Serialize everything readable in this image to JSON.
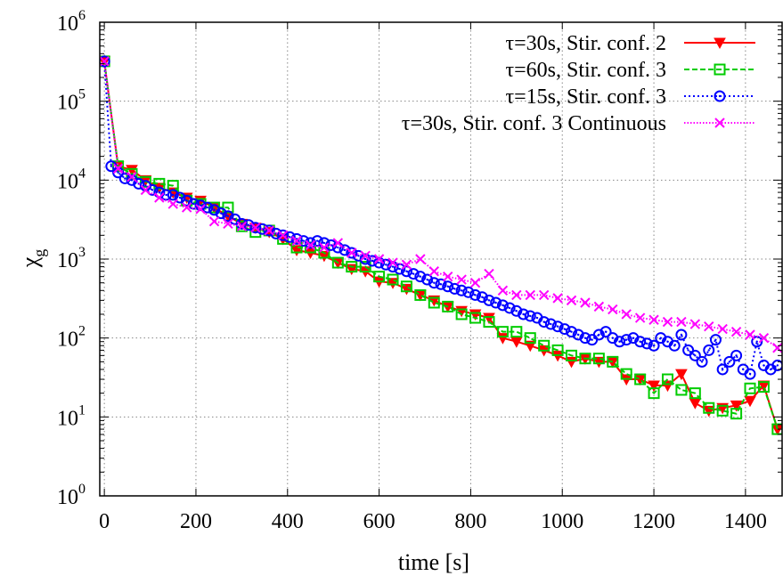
{
  "chart_data": {
    "type": "line",
    "title": "",
    "xlabel": "time [s]",
    "ylabel_main": "χ",
    "ylabel_sub": "g",
    "xlim": [
      -10,
      1480
    ],
    "ylim_exp": [
      0,
      6
    ],
    "yscale": "log",
    "x_ticks": [
      0,
      200,
      400,
      600,
      800,
      1000,
      1200,
      1400
    ],
    "y_ticks": [
      {
        "base": "10",
        "exp": "0"
      },
      {
        "base": "10",
        "exp": "1"
      },
      {
        "base": "10",
        "exp": "2"
      },
      {
        "base": "10",
        "exp": "3"
      },
      {
        "base": "10",
        "exp": "4"
      },
      {
        "base": "10",
        "exp": "5"
      },
      {
        "base": "10",
        "exp": "6"
      }
    ],
    "grid": true,
    "legend_position": "top-right",
    "series": [
      {
        "name": "τ=30s, Stir. conf. 2",
        "color": "#ff0000",
        "marker": "triangle-down",
        "x": [
          0,
          30,
          60,
          90,
          120,
          150,
          180,
          210,
          240,
          270,
          300,
          330,
          360,
          390,
          420,
          450,
          480,
          510,
          540,
          570,
          600,
          630,
          660,
          690,
          720,
          750,
          780,
          810,
          840,
          870,
          900,
          930,
          960,
          990,
          1020,
          1050,
          1080,
          1110,
          1140,
          1170,
          1200,
          1230,
          1260,
          1290,
          1320,
          1350,
          1380,
          1410,
          1440,
          1470
        ],
        "y": [
          320000,
          15000,
          13500,
          10000,
          8000,
          7000,
          6000,
          5500,
          4500,
          3500,
          2800,
          2500,
          2200,
          1800,
          1300,
          1200,
          1100,
          900,
          750,
          700,
          520,
          500,
          420,
          350,
          300,
          250,
          220,
          200,
          180,
          100,
          90,
          80,
          70,
          60,
          50,
          55,
          50,
          50,
          30,
          30,
          25,
          25,
          35,
          15,
          12,
          13,
          14,
          16,
          25,
          7
        ]
      },
      {
        "name": "τ=60s, Stir. conf. 3",
        "color": "#00cc00",
        "marker": "square-open",
        "x": [
          0,
          30,
          60,
          90,
          120,
          150,
          180,
          210,
          240,
          270,
          300,
          330,
          360,
          390,
          420,
          450,
          480,
          510,
          540,
          570,
          600,
          630,
          660,
          690,
          720,
          750,
          780,
          810,
          840,
          870,
          900,
          930,
          960,
          990,
          1020,
          1050,
          1080,
          1110,
          1140,
          1170,
          1200,
          1230,
          1260,
          1290,
          1320,
          1350,
          1380,
          1410,
          1440,
          1470
        ],
        "y": [
          320000,
          15000,
          12000,
          9500,
          9000,
          8500,
          5500,
          5000,
          4500,
          4500,
          2600,
          2200,
          2300,
          1800,
          1400,
          1400,
          1200,
          900,
          800,
          800,
          600,
          550,
          450,
          350,
          280,
          250,
          200,
          180,
          160,
          120,
          120,
          100,
          80,
          70,
          60,
          55,
          55,
          50,
          35,
          30,
          20,
          30,
          22,
          20,
          13,
          12,
          11,
          23,
          24,
          7
        ]
      },
      {
        "name": "τ=15s, Stir. conf. 3",
        "color": "#0000ff",
        "marker": "circle-dot",
        "x": [
          0,
          15,
          30,
          45,
          60,
          75,
          90,
          105,
          120,
          135,
          150,
          165,
          180,
          195,
          210,
          225,
          240,
          255,
          270,
          285,
          300,
          315,
          330,
          345,
          360,
          375,
          390,
          405,
          420,
          435,
          450,
          465,
          480,
          495,
          510,
          525,
          540,
          555,
          570,
          585,
          600,
          615,
          630,
          645,
          660,
          675,
          690,
          705,
          720,
          735,
          750,
          765,
          780,
          795,
          810,
          825,
          840,
          855,
          870,
          885,
          900,
          915,
          930,
          945,
          960,
          975,
          990,
          1005,
          1020,
          1035,
          1050,
          1065,
          1080,
          1095,
          1110,
          1125,
          1140,
          1155,
          1170,
          1185,
          1200,
          1215,
          1230,
          1245,
          1260,
          1275,
          1290,
          1305,
          1320,
          1335,
          1350,
          1365,
          1380,
          1395,
          1410,
          1425,
          1440,
          1455,
          1470
        ],
        "y": [
          320000,
          15000,
          12500,
          10500,
          10000,
          9000,
          8500,
          7500,
          7000,
          6500,
          6500,
          6000,
          5500,
          5000,
          4800,
          4500,
          4200,
          3800,
          3500,
          3200,
          2800,
          2700,
          2500,
          2400,
          2300,
          2100,
          2000,
          1900,
          1800,
          1700,
          1600,
          1700,
          1600,
          1500,
          1400,
          1300,
          1200,
          1100,
          1000,
          950,
          900,
          850,
          800,
          750,
          700,
          650,
          600,
          550,
          500,
          480,
          450,
          420,
          400,
          380,
          350,
          330,
          300,
          280,
          260,
          240,
          220,
          200,
          190,
          180,
          160,
          150,
          140,
          130,
          120,
          110,
          100,
          95,
          110,
          120,
          100,
          90,
          95,
          100,
          90,
          85,
          80,
          100,
          90,
          80,
          110,
          70,
          60,
          50,
          70,
          95,
          40,
          50,
          60,
          40,
          35,
          90,
          45,
          40,
          45
        ]
      },
      {
        "name": "τ=30s, Stir. conf. 3 Continuous",
        "color": "#ff00ff",
        "marker": "x",
        "x": [
          0,
          30,
          60,
          90,
          120,
          150,
          180,
          210,
          240,
          270,
          300,
          330,
          360,
          390,
          420,
          450,
          480,
          510,
          540,
          570,
          600,
          630,
          660,
          690,
          720,
          750,
          780,
          810,
          840,
          870,
          900,
          930,
          960,
          990,
          1020,
          1050,
          1080,
          1110,
          1140,
          1170,
          1200,
          1230,
          1260,
          1290,
          1320,
          1350,
          1380,
          1410,
          1440,
          1470
        ],
        "y": [
          320000,
          14000,
          11000,
          7500,
          6000,
          5000,
          4500,
          4300,
          3000,
          2800,
          2600,
          2500,
          2300,
          2000,
          1700,
          1500,
          1400,
          1600,
          1200,
          1100,
          1000,
          900,
          850,
          1000,
          700,
          600,
          550,
          500,
          650,
          400,
          350,
          350,
          350,
          320,
          300,
          280,
          250,
          230,
          200,
          180,
          170,
          160,
          160,
          150,
          140,
          130,
          120,
          110,
          100,
          75
        ]
      }
    ]
  }
}
